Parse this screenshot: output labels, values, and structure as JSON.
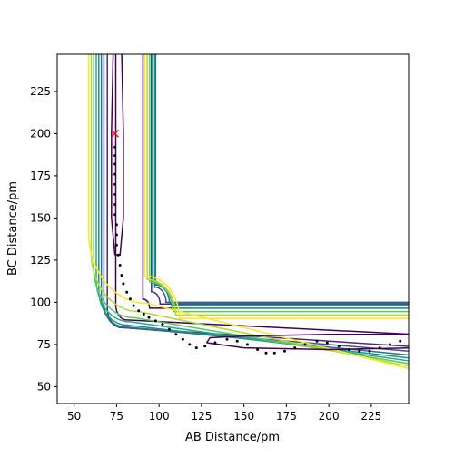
{
  "chart_data": {
    "type": "contour",
    "title": "",
    "xlabel": "AB Distance/pm",
    "ylabel": "BC Distance/pm",
    "xlim": [
      40,
      247
    ],
    "ylim": [
      40,
      247
    ],
    "xticks": [
      50,
      75,
      100,
      125,
      150,
      175,
      200,
      225
    ],
    "yticks": [
      50,
      75,
      100,
      125,
      150,
      175,
      200,
      225
    ],
    "grid": false,
    "legend": "none",
    "contours": {
      "description": "L-shaped potential energy surface contours (two valleys meeting at a corner)",
      "levels": [
        {
          "color": "#440154",
          "x0": 74.5,
          "y0": 80.5,
          "ax": 6.5,
          "ay": 9.0,
          "k": 16,
          "closed": true
        },
        {
          "color": "#472c7a",
          "x0": 69.5,
          "y0": 73.0,
          "ax": 8.5,
          "ay": 12.0,
          "k": 26,
          "closed": false
        },
        {
          "color": "#3b518b",
          "x0": 67.5,
          "y0": 70.0,
          "ax": 11.0,
          "ay": 15.0,
          "k": 30,
          "closed": false
        },
        {
          "color": "#2c718e",
          "x0": 66.0,
          "y0": 67.5,
          "ax": 13.5,
          "ay": 18.0,
          "k": 32,
          "closed": false
        },
        {
          "color": "#21908d",
          "x0": 64.5,
          "y0": 65.5,
          "ax": 16.5,
          "ay": 21.0,
          "k": 33,
          "closed": false
        },
        {
          "color": "#27ad81",
          "x0": 63.0,
          "y0": 63.5,
          "ax": 19.5,
          "ay": 25.0,
          "k": 33,
          "closed": false
        },
        {
          "color": "#5cc863",
          "x0": 61.5,
          "y0": 61.5,
          "ax": 23.0,
          "ay": 29.5,
          "k": 33,
          "closed": false
        },
        {
          "color": "#aadc32",
          "x0": 60.0,
          "y0": 59.5,
          "ax": 28.0,
          "ay": 35.0,
          "k": 33,
          "closed": false
        },
        {
          "color": "#fde725",
          "x0": 58.5,
          "y0": 57.5,
          "ax": 34.0,
          "ay": 42.0,
          "k": 33,
          "closed": false
        }
      ]
    },
    "trajectory": {
      "marker": "point",
      "color": "#000000",
      "points": [
        [
          74,
          192
        ],
        [
          74,
          187
        ],
        [
          74,
          182
        ],
        [
          74,
          176
        ],
        [
          74,
          170
        ],
        [
          74,
          164
        ],
        [
          74,
          158
        ],
        [
          74,
          152
        ],
        [
          75,
          146
        ],
        [
          75,
          140
        ],
        [
          75,
          134
        ],
        [
          76,
          128
        ],
        [
          77,
          122
        ],
        [
          78,
          116
        ],
        [
          79,
          111
        ],
        [
          81,
          106
        ],
        [
          83,
          102
        ],
        [
          85,
          98
        ],
        [
          88,
          95
        ],
        [
          91,
          93
        ],
        [
          94,
          91
        ],
        [
          98,
          89
        ],
        [
          102,
          87
        ],
        [
          106,
          84
        ],
        [
          110,
          81
        ],
        [
          114,
          78
        ],
        [
          118,
          75
        ],
        [
          122,
          73
        ],
        [
          127,
          74
        ],
        [
          133,
          76
        ],
        [
          140,
          78
        ],
        [
          146,
          77
        ],
        [
          152,
          75
        ],
        [
          158,
          72
        ],
        [
          163,
          70
        ],
        [
          168,
          70
        ],
        [
          174,
          71
        ],
        [
          180,
          73
        ],
        [
          186,
          75
        ],
        [
          193,
          77
        ],
        [
          199,
          76
        ],
        [
          206,
          74
        ],
        [
          212,
          72
        ],
        [
          218,
          71
        ],
        [
          224,
          71
        ],
        [
          230,
          73
        ],
        [
          236,
          75
        ],
        [
          242,
          77
        ]
      ]
    },
    "start_marker": {
      "x": 74,
      "y": 200,
      "symbol": "x",
      "color": "#ff0000"
    }
  }
}
